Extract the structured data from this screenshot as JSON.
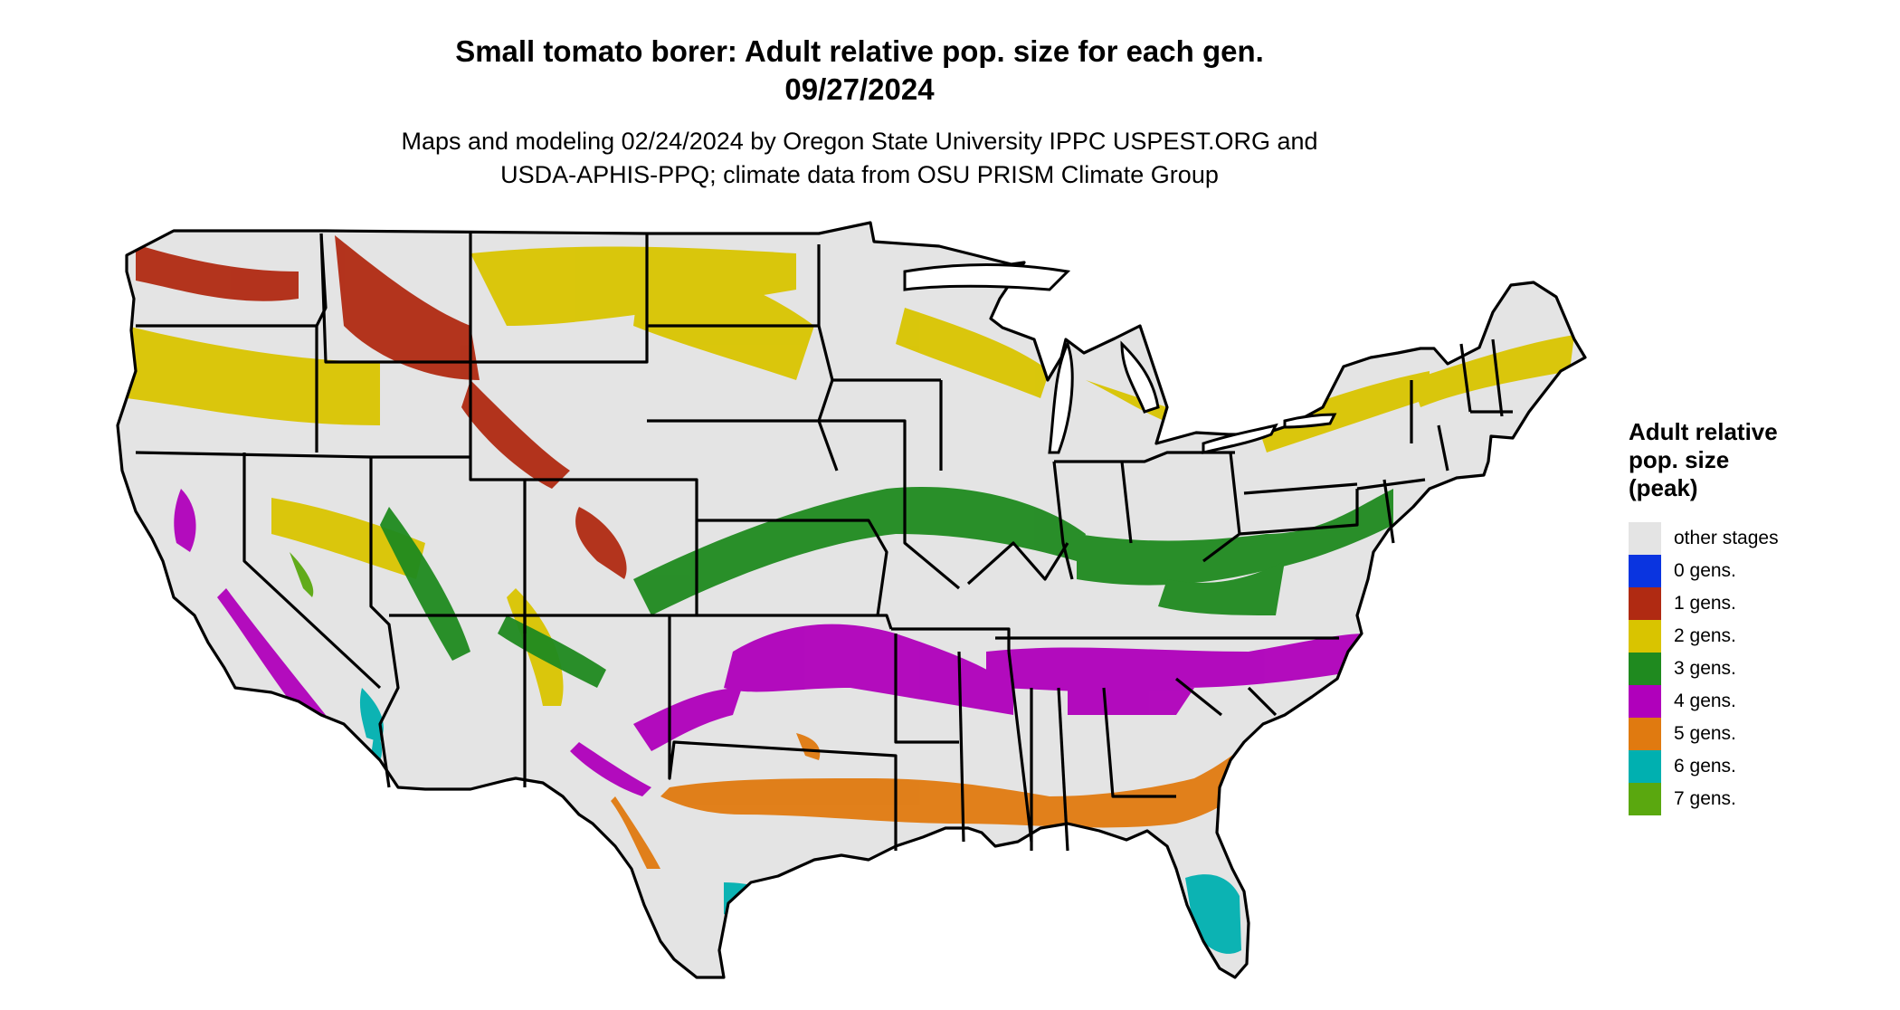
{
  "title_line1": "Small tomato borer: Adult relative pop. size for each gen.",
  "title_line2": "09/27/2024",
  "subtitle_line1": "Maps and modeling 02/24/2024 by Oregon State University IPPC USPEST.ORG and",
  "subtitle_line2": "USDA-APHIS-PPQ; climate data from OSU PRISM Climate Group",
  "legend": {
    "title_line1": "Adult relative",
    "title_line2": "pop. size",
    "title_line3": "(peak)",
    "items": [
      {
        "label": "other stages",
        "color": "#e4e4e4"
      },
      {
        "label": "0 gens.",
        "color": "#0a34e0"
      },
      {
        "label": "1 gens.",
        "color": "#b02a12"
      },
      {
        "label": "2 gens.",
        "color": "#d9c400"
      },
      {
        "label": "3 gens.",
        "color": "#1f8a1f"
      },
      {
        "label": "4 gens.",
        "color": "#b000bb"
      },
      {
        "label": "5 gens.",
        "color": "#e07a10"
      },
      {
        "label": "6 gens.",
        "color": "#00b0b0"
      },
      {
        "label": "7 gens.",
        "color": "#5aa80f"
      }
    ]
  },
  "map": {
    "land_color": "#e4e4e4",
    "border_color": "#000000"
  }
}
